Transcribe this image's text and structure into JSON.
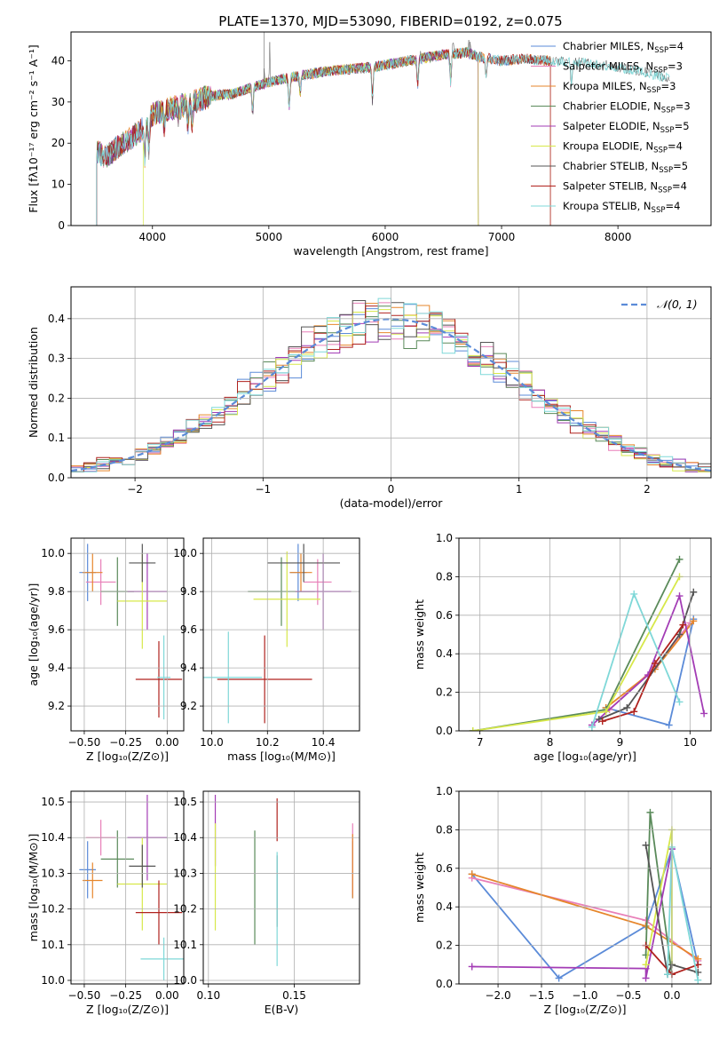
{
  "figure_title": "PLATE=1370, MJD=53090, FIBERID=0192, z=0.075",
  "series_colors": {
    "Chabrier MILES": "#5b8bd8",
    "Salpeter MILES": "#e87fb8",
    "Kroupa MILES": "#e6862b",
    "Chabrier ELODIE": "#5a8a5a",
    "Salpeter ELODIE": "#a33cb5",
    "Kroupa ELODIE": "#d7e84a",
    "Chabrier STELIB": "#555555",
    "Salpeter STELIB": "#b0221e",
    "Kroupa STELIB": "#7fd8d8"
  },
  "chart_data": [
    {
      "id": "spectrum",
      "type": "line",
      "title": "",
      "xlabel": "wavelength [Angstrom, rest frame]",
      "ylabel": "Flux [fλ10⁻¹⁷ erg cm⁻² s⁻¹ A⁻¹]",
      "xlim": [
        3300,
        8800
      ],
      "ylim": [
        0,
        47
      ],
      "xticks": [
        4000,
        5000,
        6000,
        7000,
        8000
      ],
      "yticks": [
        0,
        10,
        20,
        30,
        40
      ],
      "grid": false,
      "legend_position": "top-right",
      "legend": [
        {
          "name": "Chabrier MILES",
          "label": "Chabrier MILES, N",
          "sub": "SSP",
          "rest": "=4"
        },
        {
          "name": "Salpeter MILES",
          "label": "Salpeter MILES, N",
          "sub": "SSP",
          "rest": "=3"
        },
        {
          "name": "Kroupa MILES",
          "label": "Kroupa MILES, N",
          "sub": "SSP",
          "rest": "=3"
        },
        {
          "name": "Chabrier ELODIE",
          "label": "Chabrier ELODIE, N",
          "sub": "SSP",
          "rest": "=3"
        },
        {
          "name": "Salpeter ELODIE",
          "label": "Salpeter ELODIE, N",
          "sub": "SSP",
          "rest": "=5"
        },
        {
          "name": "Kroupa ELODIE",
          "label": "Kroupa ELODIE, N",
          "sub": "SSP",
          "rest": "=4"
        },
        {
          "name": "Chabrier STELIB",
          "label": "Chabrier STELIB, N",
          "sub": "SSP",
          "rest": "=5"
        },
        {
          "name": "Salpeter STELIB",
          "label": "Salpeter STELIB, N",
          "sub": "SSP",
          "rest": "=4"
        },
        {
          "name": "Kroupa STELIB",
          "label": "Kroupa STELIB, N",
          "sub": "SSP",
          "rest": "=4"
        }
      ],
      "continuum_points": [
        [
          3520,
          18
        ],
        [
          3600,
          16.5
        ],
        [
          3700,
          19
        ],
        [
          3800,
          21
        ],
        [
          3900,
          23
        ],
        [
          4000,
          27
        ],
        [
          4100,
          28
        ],
        [
          4300,
          29.5
        ],
        [
          4500,
          31.5
        ],
        [
          4700,
          32
        ],
        [
          4900,
          34
        ],
        [
          5100,
          35.5
        ],
        [
          5300,
          36.5
        ],
        [
          5500,
          37.5
        ],
        [
          5700,
          38
        ],
        [
          5900,
          38.5
        ],
        [
          6100,
          39.5
        ],
        [
          6300,
          40.5
        ],
        [
          6500,
          41.5
        ],
        [
          6700,
          42
        ],
        [
          6800,
          41
        ],
        [
          7000,
          40
        ],
        [
          7200,
          40.5
        ],
        [
          7400,
          40
        ],
        [
          7700,
          39.5
        ],
        [
          8000,
          38.5
        ],
        [
          8200,
          37.5
        ],
        [
          8400,
          36
        ]
      ],
      "absorption_lines": [
        [
          3934,
          8
        ],
        [
          3969,
          7
        ],
        [
          4102,
          4
        ],
        [
          4227,
          3
        ],
        [
          4304,
          5
        ],
        [
          4340,
          5
        ],
        [
          4861,
          6
        ],
        [
          5175,
          7
        ],
        [
          5270,
          4
        ],
        [
          5890,
          8
        ],
        [
          6280,
          6
        ],
        [
          6563,
          7
        ],
        [
          6867,
          4
        ],
        [
          7600,
          5
        ]
      ],
      "emission_lines": [
        [
          4959,
          4
        ],
        [
          5007,
          12
        ],
        [
          6300,
          3
        ],
        [
          6563,
          6
        ],
        [
          6583,
          5
        ],
        [
          6717,
          3
        ],
        [
          6731,
          3
        ]
      ],
      "model_edges": [
        [
          3520,
          7420
        ],
        [
          3520,
          6800
        ],
        [
          3520,
          7420
        ],
        [
          3520,
          6800
        ],
        [
          3520,
          6800
        ],
        [
          3920,
          6800
        ],
        [
          3520,
          8450
        ],
        [
          3520,
          7420
        ],
        [
          3520,
          8450
        ]
      ]
    },
    {
      "id": "residuals",
      "type": "histogram",
      "title": "",
      "xlabel": "(data-model)/error",
      "ylabel": "Normed distribution",
      "xlim": [
        -2.5,
        2.5
      ],
      "ylim": [
        0,
        0.48
      ],
      "xticks": [
        -2,
        -1,
        0,
        1,
        2
      ],
      "yticks": [
        0.0,
        0.1,
        0.2,
        0.3,
        0.4
      ],
      "grid": true,
      "bin_width": 0.1,
      "curve_label": "𝒩(0, 1)",
      "curve_color": "#5b8bd8",
      "legend_position": "top-right"
    },
    {
      "id": "age-vs-z",
      "type": "errorbar",
      "xlabel": "Z [log₁₀(Z/Z⊙)]",
      "ylabel": "age  [log₁₀(age/yr)]",
      "xlim": [
        -0.58,
        0.1
      ],
      "ylim": [
        9.07,
        10.08
      ],
      "xticks": [
        -0.5,
        -0.25,
        0.0
      ],
      "yticks": [
        9.2,
        9.4,
        9.6,
        9.8,
        10.0
      ],
      "grid": true,
      "points": [
        {
          "series": "Chabrier MILES",
          "x": -0.48,
          "xerr": 0.05,
          "y": 9.9,
          "yerr": 0.15
        },
        {
          "series": "Salpeter MILES",
          "x": -0.4,
          "xerr": 0.09,
          "y": 9.85,
          "yerr": 0.12
        },
        {
          "series": "Kroupa MILES",
          "x": -0.45,
          "xerr": 0.06,
          "y": 9.9,
          "yerr": 0.1
        },
        {
          "series": "Chabrier ELODIE",
          "x": -0.3,
          "xerr": 0.1,
          "y": 9.8,
          "yerr": 0.18
        },
        {
          "series": "Salpeter ELODIE",
          "x": -0.12,
          "xerr": 0.12,
          "y": 9.8,
          "yerr": 0.2
        },
        {
          "series": "Kroupa ELODIE",
          "x": -0.15,
          "xerr": 0.15,
          "y": 9.75,
          "yerr": 0.25
        },
        {
          "series": "Chabrier STELIB",
          "x": -0.15,
          "xerr": 0.08,
          "y": 9.95,
          "yerr": 0.1
        },
        {
          "series": "Salpeter STELIB",
          "x": -0.05,
          "xerr": 0.14,
          "y": 9.34,
          "yerr": 0.2
        },
        {
          "series": "Kroupa STELIB",
          "x": -0.02,
          "xerr": 0.04,
          "y": 9.35,
          "yerr": 0.22
        }
      ]
    },
    {
      "id": "age-vs-mass",
      "type": "errorbar",
      "xlabel": "mass [log₁₀(M/M⊙)]",
      "ylabel": "",
      "xlim": [
        9.97,
        10.53
      ],
      "ylim": [
        9.07,
        10.08
      ],
      "xticks": [
        10.0,
        10.2,
        10.4
      ],
      "yticks": [
        9.2,
        9.4,
        9.6,
        9.8,
        10.0
      ],
      "grid": true,
      "points": [
        {
          "series": "Chabrier MILES",
          "x": 10.31,
          "xerr": 0.03,
          "y": 9.9,
          "yerr": 0.15
        },
        {
          "series": "Salpeter MILES",
          "x": 10.38,
          "xerr": 0.05,
          "y": 9.85,
          "yerr": 0.12
        },
        {
          "series": "Kroupa MILES",
          "x": 10.32,
          "xerr": 0.04,
          "y": 9.9,
          "yerr": 0.1
        },
        {
          "series": "Chabrier ELODIE",
          "x": 10.25,
          "xerr": 0.12,
          "y": 9.8,
          "yerr": 0.18
        },
        {
          "series": "Salpeter ELODIE",
          "x": 10.4,
          "xerr": 0.1,
          "y": 9.8,
          "yerr": 0.2
        },
        {
          "series": "Kroupa ELODIE",
          "x": 10.27,
          "xerr": 0.12,
          "y": 9.76,
          "yerr": 0.25
        },
        {
          "series": "Chabrier STELIB",
          "x": 10.33,
          "xerr": 0.13,
          "y": 9.95,
          "yerr": 0.1
        },
        {
          "series": "Salpeter STELIB",
          "x": 10.19,
          "xerr": 0.17,
          "y": 9.34,
          "yerr": 0.23
        },
        {
          "series": "Kroupa STELIB",
          "x": 10.06,
          "xerr": 0.12,
          "y": 9.35,
          "yerr": 0.24
        }
      ]
    },
    {
      "id": "weight-vs-age",
      "type": "line",
      "xlabel": "age  [log₁₀(age/yr)]",
      "ylabel": "mass weight",
      "xlim": [
        6.7,
        10.3
      ],
      "ylim": [
        0,
        1.0
      ],
      "xticks": [
        7,
        8,
        9,
        10
      ],
      "yticks": [
        0.0,
        0.2,
        0.4,
        0.6,
        0.8,
        1.0
      ],
      "grid": true,
      "series": [
        {
          "name": "Chabrier MILES",
          "x": [
            8.8,
            9.7,
            10.05
          ],
          "y": [
            0.12,
            0.03,
            0.58
          ]
        },
        {
          "name": "Salpeter MILES",
          "x": [
            8.85,
            9.5,
            10.0
          ],
          "y": [
            0.11,
            0.33,
            0.56
          ]
        },
        {
          "name": "Kroupa MILES",
          "x": [
            8.8,
            9.5,
            10.05
          ],
          "y": [
            0.12,
            0.32,
            0.57
          ]
        },
        {
          "name": "Chabrier ELODIE",
          "x": [
            6.9,
            8.8,
            9.85
          ],
          "y": [
            0.0,
            0.11,
            0.89
          ]
        },
        {
          "name": "Salpeter ELODIE",
          "x": [
            8.6,
            9.4,
            9.85,
            10.2
          ],
          "y": [
            0.03,
            0.29,
            0.7,
            0.09
          ]
        },
        {
          "name": "Kroupa ELODIE",
          "x": [
            6.9,
            8.8,
            9.85
          ],
          "y": [
            0.0,
            0.1,
            0.8
          ]
        },
        {
          "name": "Chabrier STELIB",
          "x": [
            8.7,
            9.1,
            9.85,
            10.05
          ],
          "y": [
            0.06,
            0.12,
            0.5,
            0.72
          ]
        },
        {
          "name": "Salpeter STELIB",
          "x": [
            8.75,
            9.2,
            9.5,
            9.9
          ],
          "y": [
            0.05,
            0.1,
            0.35,
            0.55
          ]
        },
        {
          "name": "Kroupa STELIB",
          "x": [
            8.6,
            9.2,
            9.85
          ],
          "y": [
            0.02,
            0.71,
            0.15
          ]
        }
      ]
    },
    {
      "id": "mass-vs-z",
      "type": "errorbar",
      "xlabel": "Z [log₁₀(Z/Z⊙)]",
      "ylabel": "mass [log₁₀(M/M⊙)]",
      "xlim": [
        -0.58,
        0.1
      ],
      "ylim": [
        9.99,
        10.53
      ],
      "xticks": [
        -0.5,
        -0.25,
        0.0
      ],
      "yticks": [
        10.0,
        10.1,
        10.2,
        10.3,
        10.4,
        10.5
      ],
      "grid": true,
      "points": [
        {
          "series": "Chabrier MILES",
          "x": -0.48,
          "xerr": 0.05,
          "y": 10.31,
          "yerr": 0.08
        },
        {
          "series": "Salpeter MILES",
          "x": -0.4,
          "xerr": 0.09,
          "y": 10.4,
          "yerr": 0.05
        },
        {
          "series": "Kroupa MILES",
          "x": -0.45,
          "xerr": 0.06,
          "y": 10.28,
          "yerr": 0.05
        },
        {
          "series": "Chabrier ELODIE",
          "x": -0.3,
          "xerr": 0.1,
          "y": 10.34,
          "yerr": 0.08
        },
        {
          "series": "Salpeter ELODIE",
          "x": -0.12,
          "xerr": 0.12,
          "y": 10.4,
          "yerr": 0.12
        },
        {
          "series": "Kroupa ELODIE",
          "x": -0.15,
          "xerr": 0.15,
          "y": 10.27,
          "yerr": 0.13
        },
        {
          "series": "Chabrier STELIB",
          "x": -0.15,
          "xerr": 0.08,
          "y": 10.32,
          "yerr": 0.06
        },
        {
          "series": "Salpeter STELIB",
          "x": -0.05,
          "xerr": 0.14,
          "y": 10.19,
          "yerr": 0.09
        },
        {
          "series": "Kroupa STELIB",
          "x": -0.02,
          "xerr": 0.14,
          "y": 10.06,
          "yerr": 0.06
        }
      ]
    },
    {
      "id": "mass-vs-ebv",
      "type": "errorbar",
      "xlabel": "E(B-V)",
      "ylabel": "",
      "xlim": [
        0.097,
        0.188
      ],
      "ylim": [
        9.99,
        10.53
      ],
      "xticks": [
        0.1,
        0.15
      ],
      "yticks": [
        10.0,
        10.1,
        10.2,
        10.3,
        10.4,
        10.5
      ],
      "grid": true,
      "points": [
        {
          "series": "Chabrier MILES",
          "x": 0.184,
          "xerr": 0,
          "y": 10.31,
          "yerr": 0.08
        },
        {
          "series": "Salpeter MILES",
          "x": 0.184,
          "xerr": 0,
          "y": 10.34,
          "yerr": 0.1
        },
        {
          "series": "Kroupa MILES",
          "x": 0.184,
          "xerr": 0,
          "y": 10.32,
          "yerr": 0.09
        },
        {
          "series": "Chabrier ELODIE",
          "x": 0.127,
          "xerr": 0,
          "y": 10.26,
          "yerr": 0.16
        },
        {
          "series": "Salpeter ELODIE",
          "x": 0.104,
          "xerr": 0,
          "y": 10.42,
          "yerr": 0.1
        },
        {
          "series": "Kroupa ELODIE",
          "x": 0.104,
          "xerr": 0,
          "y": 10.29,
          "yerr": 0.15
        },
        {
          "series": "Chabrier STELIB",
          "x": 0.14,
          "xerr": 0,
          "y": 10.25,
          "yerr": 0.1
        },
        {
          "series": "Salpeter STELIB",
          "x": 0.14,
          "xerr": 0,
          "y": 10.45,
          "yerr": 0.06
        },
        {
          "series": "Kroupa STELIB",
          "x": 0.14,
          "xerr": 0,
          "y": 10.2,
          "yerr": 0.16
        }
      ]
    },
    {
      "id": "weight-vs-z",
      "type": "line",
      "xlabel": "Z [log₁₀(Z/Z⊙)]",
      "ylabel": "mass weight",
      "xlim": [
        -2.45,
        0.45
      ],
      "ylim": [
        0,
        1.0
      ],
      "xticks": [
        -2.0,
        -1.5,
        -1.0,
        -0.5,
        0.0
      ],
      "yticks": [
        0.0,
        0.2,
        0.4,
        0.6,
        0.8,
        1.0
      ],
      "grid": true,
      "series": [
        {
          "name": "Chabrier MILES",
          "x": [
            -2.3,
            -1.3,
            -0.3,
            0.0,
            0.3
          ],
          "y": [
            0.57,
            0.03,
            0.3,
            0.7,
            0.1
          ]
        },
        {
          "name": "Salpeter MILES",
          "x": [
            -2.3,
            -0.3,
            0.3
          ],
          "y": [
            0.55,
            0.33,
            0.12
          ]
        },
        {
          "name": "Kroupa MILES",
          "x": [
            -2.3,
            -0.3,
            0.3
          ],
          "y": [
            0.57,
            0.3,
            0.13
          ]
        },
        {
          "name": "Chabrier ELODIE",
          "x": [
            -0.3,
            -0.25,
            0.0
          ],
          "y": [
            0.15,
            0.89,
            0.05
          ]
        },
        {
          "name": "Salpeter ELODIE",
          "x": [
            -2.3,
            -0.3,
            -0.3,
            0.0
          ],
          "y": [
            0.09,
            0.08,
            0.03,
            0.7
          ]
        },
        {
          "name": "Kroupa ELODIE",
          "x": [
            -0.3,
            0.0,
            0.0
          ],
          "y": [
            0.1,
            0.8,
            0.1
          ]
        },
        {
          "name": "Chabrier STELIB",
          "x": [
            -0.3,
            -0.05,
            0.0,
            0.3
          ],
          "y": [
            0.72,
            0.05,
            0.1,
            0.06
          ]
        },
        {
          "name": "Salpeter STELIB",
          "x": [
            -0.3,
            0.0,
            0.3
          ],
          "y": [
            0.2,
            0.05,
            0.1
          ]
        },
        {
          "name": "Kroupa STELIB",
          "x": [
            -0.05,
            0.0,
            0.3
          ],
          "y": [
            0.05,
            0.71,
            0.02
          ]
        }
      ]
    }
  ]
}
